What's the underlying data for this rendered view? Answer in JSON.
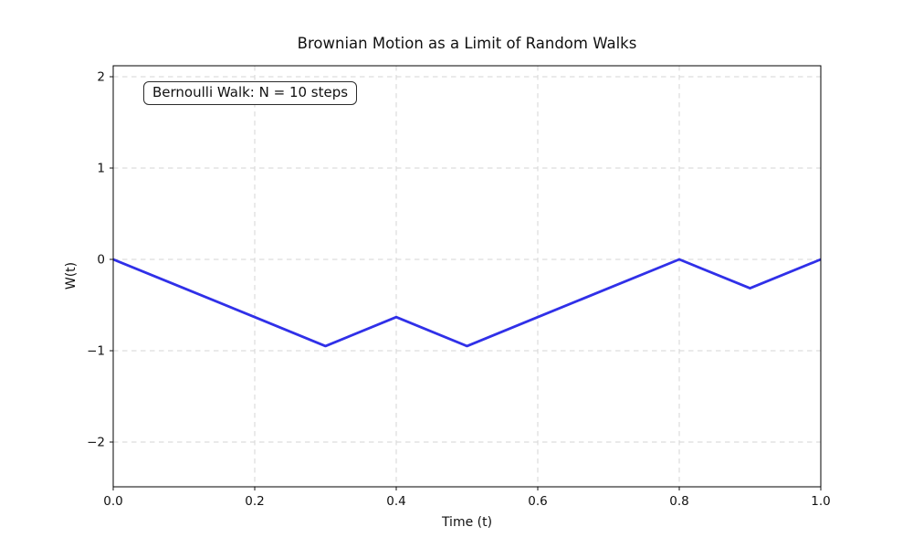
{
  "figure": {
    "background_color": "#ffffff"
  },
  "chart_data": {
    "type": "line",
    "title": "Brownian Motion as a Limit of Random Walks",
    "xlabel": "Time (t)",
    "ylabel": "W(t)",
    "annotation": "Bernoulli Walk: N = 10 steps",
    "x": [
      0.0,
      0.1,
      0.2,
      0.3,
      0.4,
      0.5,
      0.6,
      0.7,
      0.8,
      0.9,
      1.0
    ],
    "y": [
      0.0,
      -0.316,
      -0.632,
      -0.949,
      -0.632,
      -0.949,
      -0.632,
      -0.316,
      0.0,
      -0.316,
      0.0
    ],
    "xlim": [
      0.0,
      1.0
    ],
    "ylim": [
      -2.49,
      2.12
    ],
    "xticks": {
      "values": [
        0.0,
        0.2,
        0.4,
        0.6,
        0.8,
        1.0
      ],
      "labels": [
        "0.0",
        "0.2",
        "0.4",
        "0.6",
        "0.8",
        "1.0"
      ]
    },
    "yticks": {
      "values": [
        -2,
        -1,
        0,
        1,
        2
      ],
      "labels": [
        "−2",
        "−1",
        "0",
        "1",
        "2"
      ]
    },
    "grid": "dashed",
    "legend": "none",
    "line_color": "#3030e8",
    "line_width": 2.8,
    "grid_color": "#d6d6d6",
    "spine_color": "#000000",
    "tick_color": "#111111"
  }
}
